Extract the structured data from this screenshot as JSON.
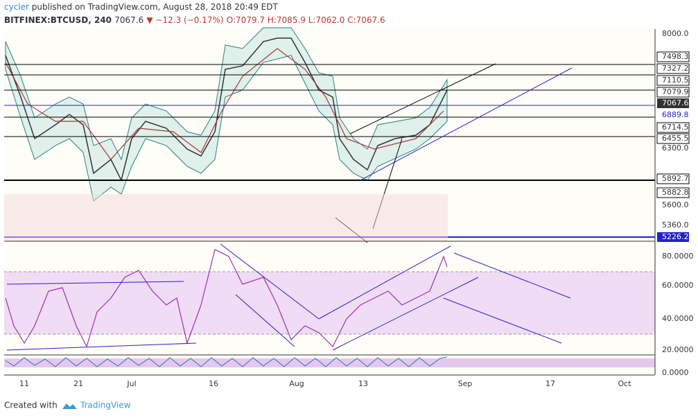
{
  "header": {
    "publisher": "cycler",
    "published": "published on TradingView.com, August 28, 2018 20:49 EDT",
    "symbol": "BITFINEX:BTCUSD, 240",
    "last": "7067.6",
    "change": "▼ −12.3 (−0.17%)",
    "ohlc": "O:7079.7 H:7085.9 L:7062.0 C:7067.6"
  },
  "price_axis": [
    "8000.0",
    "7498.3",
    "7327.2",
    "7110.5",
    "7079.9",
    "7067.6",
    "6889.8",
    "6714.5",
    "6455.5",
    "6300.0",
    "5892.7",
    "5882.8",
    "5600.0",
    "5360.0",
    "5226.2"
  ],
  "rsi_axis": [
    "80.0000",
    "60.0000",
    "40.0000",
    "20.0000",
    "0.0000"
  ],
  "time_axis": [
    "11",
    "21",
    "Jul",
    "16",
    "Aug",
    "13",
    "Sep",
    "17",
    "Oct"
  ],
  "footer": {
    "created": "Created with",
    "brand": "TradingView"
  }
}
